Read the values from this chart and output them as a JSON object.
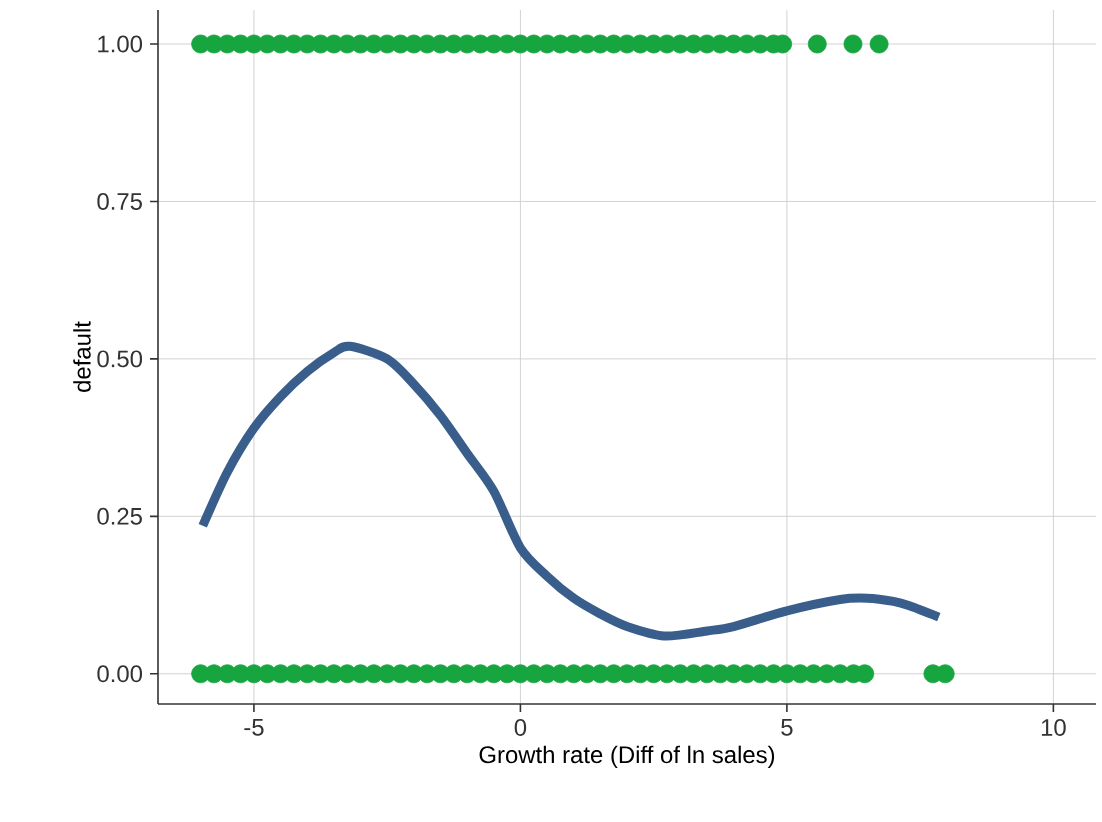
{
  "chart_data": {
    "type": "scatter",
    "xlabel": "Growth rate (Diff of ln sales)",
    "ylabel": "default",
    "xlim": [
      -6.8,
      10.8
    ],
    "ylim": [
      -0.048,
      1.054
    ],
    "xticks": [
      -5,
      0,
      5,
      10
    ],
    "yticks": [
      {
        "value": 0,
        "label": "0.00"
      },
      {
        "value": 0.25,
        "label": "0.25"
      },
      {
        "value": 0.5,
        "label": "0.50"
      },
      {
        "value": 0.75,
        "label": "0.75"
      },
      {
        "value": 1,
        "label": "1.00"
      }
    ],
    "grid": true,
    "marker": "circle",
    "series": [
      {
        "color": "#17a540",
        "x": [
          -6.0,
          -5.75,
          -5.5,
          -5.25,
          -5.0,
          -4.75,
          -4.5,
          -4.25,
          -4.0,
          -3.75,
          -3.5,
          -3.25,
          -3.0,
          -2.75,
          -2.5,
          -2.25,
          -2.0,
          -1.75,
          -1.5,
          -1.25,
          -1.0,
          -0.75,
          -0.5,
          -0.25,
          0.0,
          0.25,
          0.5,
          0.75,
          1.0,
          1.25,
          1.5,
          1.75,
          2.0,
          2.25,
          2.5,
          2.75,
          3.0,
          3.25,
          3.5,
          3.75,
          4.0,
          4.25,
          4.5,
          4.75,
          4.92,
          5.57,
          6.24,
          6.73
        ],
        "values": [
          1,
          1,
          1,
          1,
          1,
          1,
          1,
          1,
          1,
          1,
          1,
          1,
          1,
          1,
          1,
          1,
          1,
          1,
          1,
          1,
          1,
          1,
          1,
          1,
          1,
          1,
          1,
          1,
          1,
          1,
          1,
          1,
          1,
          1,
          1,
          1,
          1,
          1,
          1,
          1,
          1,
          1,
          1,
          1,
          1,
          1,
          1,
          1
        ]
      },
      {
        "color": "#17a540",
        "x": [
          -6.0,
          -5.75,
          -5.5,
          -5.25,
          -5.0,
          -4.75,
          -4.5,
          -4.25,
          -4.0,
          -3.75,
          -3.5,
          -3.25,
          -3.0,
          -2.75,
          -2.5,
          -2.25,
          -2.0,
          -1.75,
          -1.5,
          -1.25,
          -1.0,
          -0.75,
          -0.5,
          -0.25,
          0.0,
          0.25,
          0.5,
          0.75,
          1.0,
          1.25,
          1.5,
          1.75,
          2.0,
          2.25,
          2.5,
          2.75,
          3.0,
          3.25,
          3.5,
          3.75,
          4.0,
          4.25,
          4.5,
          4.75,
          5.0,
          5.25,
          5.5,
          5.75,
          6.0,
          6.25,
          6.46,
          7.74,
          7.97
        ],
        "values": [
          0,
          0,
          0,
          0,
          0,
          0,
          0,
          0,
          0,
          0,
          0,
          0,
          0,
          0,
          0,
          0,
          0,
          0,
          0,
          0,
          0,
          0,
          0,
          0,
          0,
          0,
          0,
          0,
          0,
          0,
          0,
          0,
          0,
          0,
          0,
          0,
          0,
          0,
          0,
          0,
          0,
          0,
          0,
          0,
          0,
          0,
          0,
          0,
          0,
          0,
          0,
          0,
          0
        ]
      },
      {
        "type": "line",
        "color": "#3a5e8c",
        "marker": "none",
        "x": [
          -5.96,
          -5.5,
          -5.0,
          -4.5,
          -4.0,
          -3.5,
          -3.2,
          -2.5,
          -2.0,
          -1.5,
          -1.0,
          -0.5,
          0.0,
          0.5,
          1.0,
          1.5,
          2.0,
          2.7,
          3.5,
          4.0,
          5.0,
          6.0,
          6.5,
          7.0,
          7.3,
          7.85
        ],
        "values": [
          0.235,
          0.32,
          0.39,
          0.44,
          0.48,
          0.51,
          0.52,
          0.5,
          0.46,
          0.41,
          0.35,
          0.29,
          0.2,
          0.155,
          0.12,
          0.095,
          0.075,
          0.06,
          0.068,
          0.075,
          0.1,
          0.118,
          0.12,
          0.115,
          0.108,
          0.09
        ]
      }
    ]
  }
}
